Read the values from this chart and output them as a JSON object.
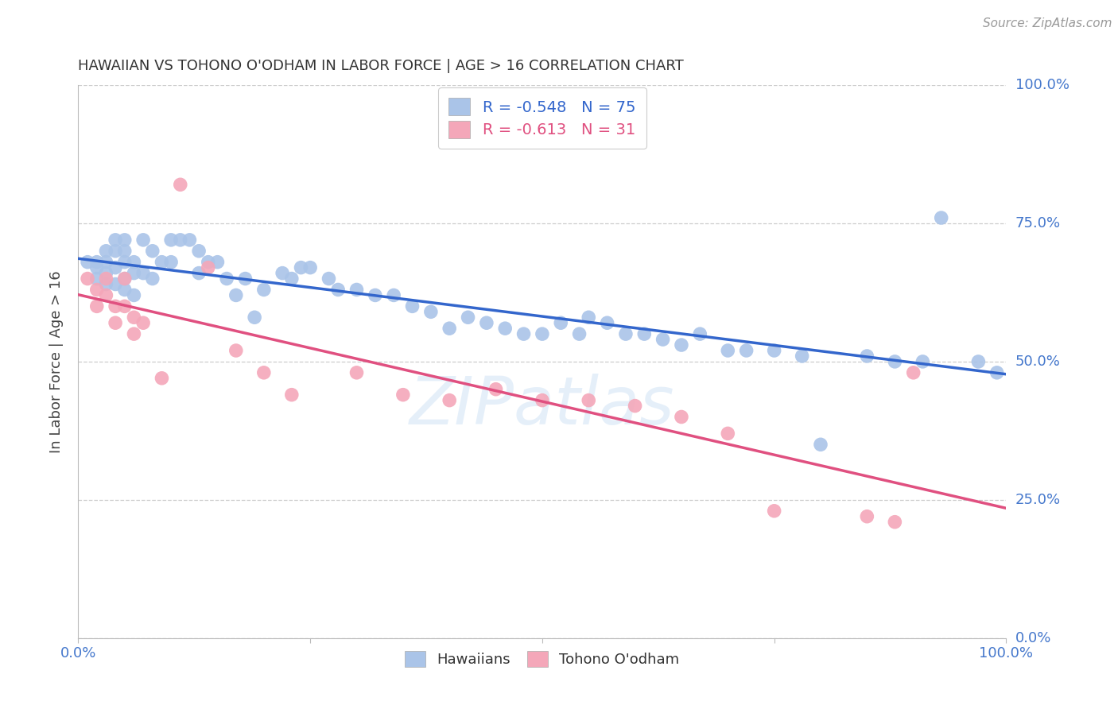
{
  "title": "HAWAIIAN VS TOHONO O'ODHAM IN LABOR FORCE | AGE > 16 CORRELATION CHART",
  "source": "Source: ZipAtlas.com",
  "ylabel": "In Labor Force | Age > 16",
  "xlim": [
    0.0,
    1.0
  ],
  "ylim": [
    0.0,
    1.0
  ],
  "ytick_labels": [
    "0.0%",
    "25.0%",
    "50.0%",
    "75.0%",
    "100.0%"
  ],
  "ytick_positions": [
    0.0,
    0.25,
    0.5,
    0.75,
    1.0
  ],
  "background_color": "#ffffff",
  "grid_color": "#cccccc",
  "hawaiian_color": "#aac4e8",
  "tohono_color": "#f4a7b9",
  "line_blue": "#3366cc",
  "line_pink": "#e05080",
  "tick_label_color": "#4477cc",
  "title_color": "#333333",
  "legend_R_blue": "-0.548",
  "legend_N_blue": "75",
  "legend_R_pink": "-0.613",
  "legend_N_pink": "31",
  "watermark": "ZIPatlas",
  "hawaiian_x": [
    0.01,
    0.02,
    0.02,
    0.02,
    0.03,
    0.03,
    0.03,
    0.03,
    0.04,
    0.04,
    0.04,
    0.04,
    0.05,
    0.05,
    0.05,
    0.05,
    0.05,
    0.06,
    0.06,
    0.06,
    0.07,
    0.07,
    0.08,
    0.08,
    0.09,
    0.1,
    0.1,
    0.11,
    0.12,
    0.13,
    0.13,
    0.14,
    0.15,
    0.16,
    0.17,
    0.18,
    0.19,
    0.2,
    0.22,
    0.23,
    0.24,
    0.25,
    0.27,
    0.28,
    0.3,
    0.32,
    0.34,
    0.36,
    0.38,
    0.4,
    0.42,
    0.44,
    0.46,
    0.48,
    0.5,
    0.52,
    0.54,
    0.55,
    0.57,
    0.59,
    0.61,
    0.63,
    0.65,
    0.67,
    0.7,
    0.72,
    0.75,
    0.78,
    0.8,
    0.85,
    0.88,
    0.91,
    0.93,
    0.97,
    0.99
  ],
  "hawaiian_y": [
    0.68,
    0.68,
    0.67,
    0.65,
    0.7,
    0.68,
    0.66,
    0.64,
    0.72,
    0.7,
    0.67,
    0.64,
    0.72,
    0.7,
    0.68,
    0.65,
    0.63,
    0.68,
    0.66,
    0.62,
    0.72,
    0.66,
    0.7,
    0.65,
    0.68,
    0.72,
    0.68,
    0.72,
    0.72,
    0.7,
    0.66,
    0.68,
    0.68,
    0.65,
    0.62,
    0.65,
    0.58,
    0.63,
    0.66,
    0.65,
    0.67,
    0.67,
    0.65,
    0.63,
    0.63,
    0.62,
    0.62,
    0.6,
    0.59,
    0.56,
    0.58,
    0.57,
    0.56,
    0.55,
    0.55,
    0.57,
    0.55,
    0.58,
    0.57,
    0.55,
    0.55,
    0.54,
    0.53,
    0.55,
    0.52,
    0.52,
    0.52,
    0.51,
    0.35,
    0.51,
    0.5,
    0.5,
    0.76,
    0.5,
    0.48
  ],
  "tohono_x": [
    0.01,
    0.02,
    0.02,
    0.03,
    0.03,
    0.04,
    0.04,
    0.05,
    0.05,
    0.06,
    0.06,
    0.07,
    0.09,
    0.11,
    0.14,
    0.17,
    0.2,
    0.23,
    0.3,
    0.35,
    0.4,
    0.45,
    0.5,
    0.55,
    0.6,
    0.65,
    0.7,
    0.75,
    0.85,
    0.88,
    0.9
  ],
  "tohono_y": [
    0.65,
    0.63,
    0.6,
    0.65,
    0.62,
    0.6,
    0.57,
    0.65,
    0.6,
    0.58,
    0.55,
    0.57,
    0.47,
    0.82,
    0.67,
    0.52,
    0.48,
    0.44,
    0.48,
    0.44,
    0.43,
    0.45,
    0.43,
    0.43,
    0.42,
    0.4,
    0.37,
    0.23,
    0.22,
    0.21,
    0.48
  ]
}
